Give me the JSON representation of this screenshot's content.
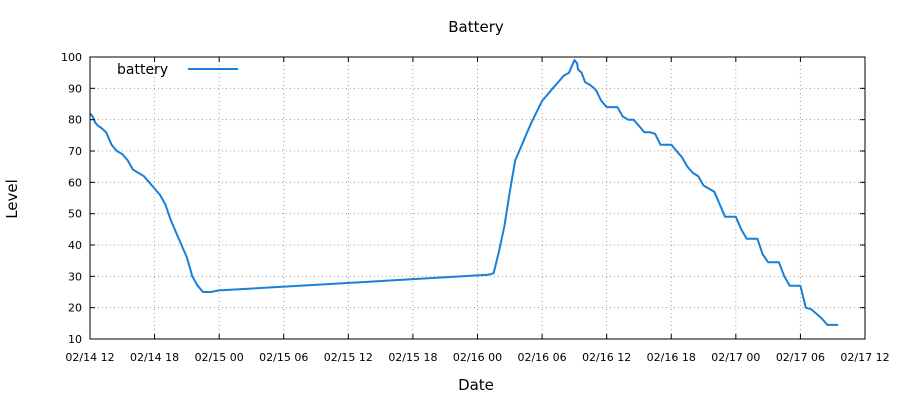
{
  "chart_data": {
    "type": "line",
    "title": "Battery",
    "xlabel": "Date",
    "ylabel": "Level",
    "xlim": [
      "2015-02-14 12:00",
      "2015-02-17 12:00"
    ],
    "ylim": [
      10,
      100
    ],
    "yticks": [
      10,
      20,
      30,
      40,
      50,
      60,
      70,
      80,
      90,
      100
    ],
    "xticks": [
      "02/14 12",
      "02/14 18",
      "02/15 00",
      "02/15 06",
      "02/15 12",
      "02/15 18",
      "02/16 00",
      "02/16 06",
      "02/16 12",
      "02/16 18",
      "02/17 00",
      "02/17 06",
      "02/17 12"
    ],
    "grid": true,
    "legend": "top-left",
    "series": [
      {
        "name": "battery",
        "color": "#1a7fd6",
        "x": [
          "02/14 12:00",
          "02/14 12:15",
          "02/14 12:30",
          "02/14 12:45",
          "02/14 13:00",
          "02/14 13:30",
          "02/14 14:00",
          "02/14 14:30",
          "02/14 15:00",
          "02/14 15:30",
          "02/14 16:00",
          "02/14 16:30",
          "02/14 17:00",
          "02/14 17:30",
          "02/14 18:00",
          "02/14 18:30",
          "02/14 19:00",
          "02/14 19:30",
          "02/14 20:00",
          "02/14 20:30",
          "02/14 21:00",
          "02/14 21:30",
          "02/14 22:00",
          "02/14 22:30",
          "02/14 22:45",
          "02/14 23:00",
          "02/14 23:15",
          "02/14 23:30",
          "02/15 00:00",
          "02/16 01:00",
          "02/16 01:30",
          "02/16 02:00",
          "02/16 02:30",
          "02/16 03:00",
          "02/16 03:30",
          "02/16 04:00",
          "02/16 04:30",
          "02/16 05:00",
          "02/16 05:30",
          "02/16 06:00",
          "02/16 06:30",
          "02/16 07:00",
          "02/16 07:30",
          "02/16 08:00",
          "02/16 08:30",
          "02/16 09:00",
          "02/16 09:15",
          "02/16 09:20",
          "02/16 09:40",
          "02/16 10:00",
          "02/16 10:30",
          "02/16 11:00",
          "02/16 11:30",
          "02/16 12:00",
          "02/16 12:30",
          "02/16 13:00",
          "02/16 13:30",
          "02/16 14:00",
          "02/16 14:30",
          "02/16 15:00",
          "02/16 15:30",
          "02/16 16:00",
          "02/16 16:30",
          "02/16 17:00",
          "02/16 17:30",
          "02/16 18:00",
          "02/16 18:30",
          "02/16 19:00",
          "02/16 19:30",
          "02/16 20:00",
          "02/16 20:30",
          "02/16 21:00",
          "02/16 21:30",
          "02/16 22:00",
          "02/16 22:30",
          "02/16 23:00",
          "02/16 23:30",
          "02/17 00:00",
          "02/17 00:30",
          "02/17 01:00",
          "02/17 01:30",
          "02/17 02:00",
          "02/17 02:30",
          "02/17 03:00",
          "02/17 03:30",
          "02/17 04:00",
          "02/17 04:30",
          "02/17 05:00",
          "02/17 05:30",
          "02/17 06:00",
          "02/17 06:30",
          "02/17 07:00",
          "02/17 07:30",
          "02/17 08:00",
          "02/17 08:30",
          "02/17 09:00",
          "02/17 09:30"
        ],
        "y": [
          82,
          81,
          79,
          78,
          77.5,
          76,
          72,
          70,
          69,
          67,
          64,
          63,
          62,
          60,
          58,
          56,
          53,
          48,
          44,
          40,
          36,
          30,
          27,
          25,
          25,
          25,
          25,
          25.2,
          25.5,
          30.5,
          31,
          38,
          46,
          57,
          67,
          71,
          75,
          79,
          82.5,
          86,
          88,
          90,
          92,
          94,
          95,
          99,
          98,
          96,
          95,
          92,
          91,
          89.5,
          86,
          84,
          84,
          84,
          81,
          80,
          80,
          78,
          76,
          76,
          75.5,
          72,
          72,
          72,
          70,
          68,
          65,
          63,
          62,
          59,
          58,
          57,
          53,
          49,
          49,
          49,
          45,
          42,
          42,
          42,
          37,
          34.5,
          34.5,
          34.5,
          30,
          27,
          27,
          27,
          20,
          19.5,
          18,
          16.5,
          14.5,
          14.5,
          14.5
        ]
      }
    ]
  }
}
